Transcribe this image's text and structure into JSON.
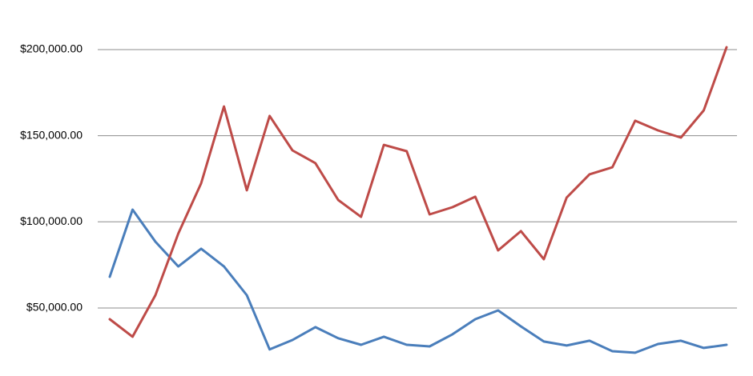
{
  "chart_data": {
    "type": "line",
    "categories": [
      null,
      null,
      null,
      null,
      null,
      null,
      null,
      null,
      null,
      null,
      null,
      null,
      null,
      null,
      null,
      null,
      null,
      null,
      null,
      null,
      null,
      null,
      null,
      null,
      null,
      null,
      null,
      null
    ],
    "series": [
      {
        "color": "#4a7ebb",
        "values": [
          68100,
          107100,
          88500,
          74100,
          84400,
          74100,
          57400,
          25900,
          31400,
          38900,
          32400,
          28600,
          33300,
          28600,
          27700,
          34700,
          43500,
          48600,
          39300,
          30500,
          28200,
          31000,
          24900,
          24000,
          29100,
          31000,
          26800,
          28600
        ]
      },
      {
        "color": "#be4b48",
        "values": [
          43500,
          33300,
          57400,
          93200,
          122400,
          167000,
          118300,
          161500,
          141500,
          134100,
          112700,
          102900,
          144700,
          141000,
          104300,
          108500,
          114600,
          83400,
          94600,
          78300,
          114100,
          127600,
          131700,
          158700,
          153100,
          148900,
          164700,
          201400
        ]
      }
    ],
    "ylim": [
      10500,
      228800
    ],
    "yticks": [
      {
        "value": 50000,
        "label": "$50,000.00"
      },
      {
        "value": 100000,
        "label": "$100,000.00"
      },
      {
        "value": 150000,
        "label": "$150,000.00"
      },
      {
        "value": 200000,
        "label": "$200,000.00"
      }
    ],
    "grid": true
  }
}
